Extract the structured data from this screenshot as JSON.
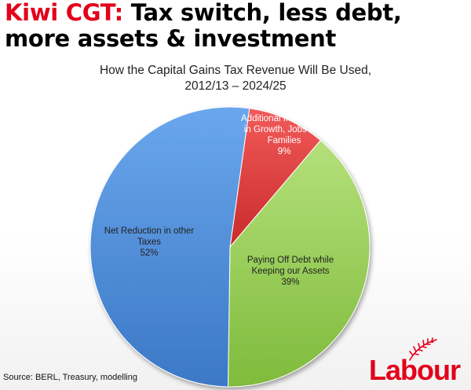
{
  "headline": {
    "accent": "Kiwi CGT:",
    "rest_line1": " Tax switch, less debt,",
    "line2": "more assets & investment"
  },
  "source": "Source: BERL, Treasury, modelling",
  "logo": {
    "text": "Labour",
    "icon": "fern-icon"
  },
  "colors": {
    "brand_red": "#e3001b"
  },
  "chart_data": {
    "type": "pie",
    "title_line1": "How the Capital Gains Tax Revenue Will Be Used,",
    "title_line2": "2012/13 – 2024/25",
    "slices": [
      {
        "label_lines": [
          "Additional Investment",
          "in Growth, Jobs and",
          "Families"
        ],
        "pct_label": "9%",
        "value": 9,
        "color": "#e23b3b"
      },
      {
        "label_lines": [
          "Paying Off Debt while",
          "Keeping our Assets"
        ],
        "pct_label": "39%",
        "value": 39,
        "color": "#92d050"
      },
      {
        "label_lines": [
          "Net Reduction in other",
          "Taxes"
        ],
        "pct_label": "52%",
        "value": 52,
        "color": "#4f8fdb"
      }
    ],
    "start_angle_deg": 8,
    "legend": "none"
  }
}
